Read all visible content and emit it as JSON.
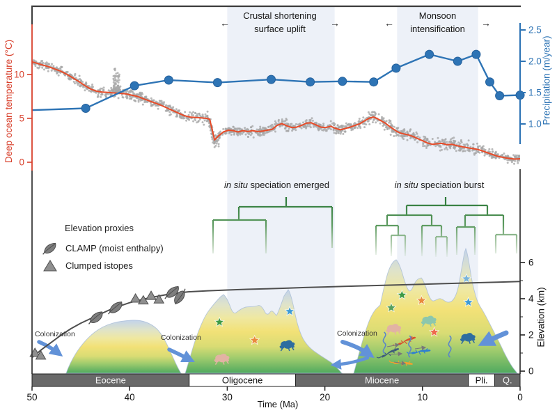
{
  "annotations": {
    "uplift": {
      "line1": "Crustal shortening",
      "line2": "surface uplift",
      "arrow_left": "←",
      "arrow_right": "→"
    },
    "monsoon": {
      "line1": "Monsoon",
      "line2": "intensification",
      "arrow_left": "←",
      "arrow_right": "→"
    },
    "speciation1": {
      "italic": "in situ",
      "rest": " speciation emerged"
    },
    "speciation2": {
      "italic": "in situ",
      "rest": " speciation burst"
    },
    "colonization": {
      "label": "Colonization"
    }
  },
  "legend": {
    "title": "Elevation proxies",
    "items": [
      {
        "icon": "leaf-icon",
        "label": "CLAMP (moist enthalpy)"
      },
      {
        "icon": "triangle-icon",
        "label": "Clumped istopes"
      }
    ]
  },
  "chart_data": {
    "type": "line",
    "x_axis": {
      "label": "Time (Ma)",
      "range": [
        50,
        0
      ],
      "ticks": [
        50,
        40,
        30,
        20,
        10,
        0
      ]
    },
    "shaded_bands": [
      {
        "label": "Crustal shortening surface uplift",
        "from_ma": 30,
        "to_ma": 19,
        "color": "#edf1f8"
      },
      {
        "label": "Monsoon intensification",
        "from_ma": 12.6,
        "to_ma": 4.3,
        "color": "#edf1f8"
      }
    ],
    "temperature": {
      "axis_label": "Deep ocean temperature (°C)",
      "color": "#e84b28",
      "axis_color": "#d8402c",
      "ticks": [
        10,
        5,
        0
      ],
      "smoothed_series": [
        [
          50,
          11.45
        ],
        [
          49.4,
          11.25
        ],
        [
          48.8,
          11.05
        ],
        [
          48.2,
          10.85
        ],
        [
          47.6,
          10.6
        ],
        [
          47,
          10.35
        ],
        [
          46.4,
          10.0
        ],
        [
          45.8,
          9.6
        ],
        [
          45.2,
          9.2
        ],
        [
          44.6,
          8.75
        ],
        [
          44,
          8.35
        ],
        [
          43.4,
          8.1
        ],
        [
          42.8,
          8.0
        ],
        [
          42.2,
          7.95
        ],
        [
          41.6,
          7.9
        ],
        [
          41,
          7.85
        ],
        [
          40.4,
          7.8
        ],
        [
          39.8,
          7.65
        ],
        [
          39.2,
          7.5
        ],
        [
          38.6,
          7.25
        ],
        [
          38,
          7.0
        ],
        [
          37.4,
          6.75
        ],
        [
          36.8,
          6.5
        ],
        [
          36.2,
          6.2
        ],
        [
          35.6,
          5.9
        ],
        [
          35,
          5.6
        ],
        [
          34.4,
          5.3
        ],
        [
          33.8,
          5.15
        ],
        [
          33.2,
          5.1
        ],
        [
          32.6,
          5.05
        ],
        [
          32.1,
          5.0
        ],
        [
          31.8,
          4.9
        ],
        [
          31.3,
          2.55
        ],
        [
          30.9,
          3.0
        ],
        [
          30.4,
          3.45
        ],
        [
          29.9,
          3.65
        ],
        [
          29.4,
          3.6
        ],
        [
          28.9,
          3.45
        ],
        [
          28.4,
          3.6
        ],
        [
          27.9,
          3.5
        ],
        [
          27.4,
          3.6
        ],
        [
          26.9,
          3.5
        ],
        [
          26.4,
          3.55
        ],
        [
          25.9,
          3.65
        ],
        [
          25.4,
          3.75
        ],
        [
          24.9,
          4.2
        ],
        [
          24.4,
          4.4
        ],
        [
          23.9,
          4.15
        ],
        [
          23.4,
          3.95
        ],
        [
          22.9,
          4.0
        ],
        [
          22.4,
          4.2
        ],
        [
          21.9,
          4.45
        ],
        [
          21.4,
          4.5
        ],
        [
          20.9,
          4.25
        ],
        [
          20.4,
          4.0
        ],
        [
          19.9,
          3.95
        ],
        [
          19.4,
          4.1
        ],
        [
          18.9,
          3.85
        ],
        [
          18.4,
          3.7
        ],
        [
          17.9,
          3.85
        ],
        [
          17.4,
          4.0
        ],
        [
          16.9,
          4.2
        ],
        [
          16.4,
          4.4
        ],
        [
          15.9,
          4.75
        ],
        [
          15.4,
          5.05
        ],
        [
          15,
          5.15
        ],
        [
          14.6,
          4.95
        ],
        [
          14.2,
          4.7
        ],
        [
          13.8,
          4.45
        ],
        [
          13.4,
          4.1
        ],
        [
          13,
          3.8
        ],
        [
          12.6,
          3.5
        ],
        [
          12.2,
          3.3
        ],
        [
          11.8,
          3.2
        ],
        [
          11.4,
          3.1
        ],
        [
          11,
          2.95
        ],
        [
          10.5,
          2.7
        ],
        [
          10,
          2.45
        ],
        [
          9.5,
          2.2
        ],
        [
          9,
          2.05
        ],
        [
          8.5,
          2.1
        ],
        [
          8,
          2.15
        ],
        [
          7.5,
          2.0
        ],
        [
          7,
          2.05
        ],
        [
          6.5,
          1.9
        ],
        [
          6,
          1.78
        ],
        [
          5.5,
          1.68
        ],
        [
          5,
          1.58
        ],
        [
          4.5,
          1.5
        ],
        [
          4,
          1.35
        ],
        [
          3.5,
          1.15
        ],
        [
          3,
          0.95
        ],
        [
          2.5,
          0.75
        ],
        [
          2,
          0.6
        ],
        [
          1.5,
          0.5
        ],
        [
          1,
          0.42
        ],
        [
          0.5,
          0.36
        ],
        [
          0,
          0.4
        ]
      ],
      "scatter": {
        "color": "#a7a7a7",
        "noise_amplitude_c": 0.6,
        "spike_at_ma": 41.3,
        "spike_peak_c": 10.4,
        "eot_low_cluster_ma": 31.3
      }
    },
    "precipitation": {
      "axis_label": "Precipitation (m/year)",
      "color": "#2e74b5",
      "ticks": [
        2.5,
        2.0,
        1.5,
        1.0
      ],
      "series": [
        [
          50,
          1.22
        ],
        [
          44.5,
          1.25
        ],
        [
          39.5,
          1.61
        ],
        [
          36,
          1.7
        ],
        [
          31,
          1.66
        ],
        [
          25.5,
          1.71
        ],
        [
          21.5,
          1.67
        ],
        [
          18.2,
          1.68
        ],
        [
          15,
          1.67
        ],
        [
          12.7,
          1.89
        ],
        [
          9.3,
          2.11
        ],
        [
          6.4,
          2.0
        ],
        [
          4.5,
          2.11
        ],
        [
          3.1,
          1.67
        ],
        [
          2.1,
          1.45
        ],
        [
          0,
          1.46
        ]
      ]
    },
    "elevation": {
      "axis_label": "Elevation (km)",
      "ticks": [
        6,
        4,
        2,
        0
      ],
      "proxy_curve": [
        [
          50,
          0.75
        ],
        [
          49,
          1.2
        ],
        [
          48,
          1.6
        ],
        [
          47,
          2.0
        ],
        [
          46,
          2.35
        ],
        [
          45,
          2.65
        ],
        [
          44,
          2.9
        ],
        [
          43,
          3.15
        ],
        [
          42,
          3.4
        ],
        [
          41,
          3.6
        ],
        [
          40,
          3.78
        ],
        [
          39,
          3.92
        ],
        [
          38,
          4.05
        ],
        [
          37,
          4.15
        ],
        [
          36,
          4.25
        ],
        [
          35,
          4.32
        ],
        [
          34,
          4.38
        ],
        [
          32,
          4.44
        ],
        [
          30,
          4.48
        ],
        [
          28,
          4.52
        ],
        [
          26,
          4.55
        ],
        [
          24,
          4.58
        ],
        [
          22,
          4.62
        ],
        [
          20,
          4.65
        ],
        [
          18,
          4.68
        ],
        [
          16,
          4.71
        ],
        [
          14,
          4.74
        ],
        [
          12,
          4.77
        ],
        [
          10,
          4.8
        ],
        [
          8,
          4.83
        ],
        [
          6,
          4.86
        ],
        [
          4,
          4.89
        ],
        [
          2,
          4.92
        ],
        [
          0,
          4.95
        ]
      ],
      "clumped_isotope_points": [
        [
          49.7,
          1.0
        ],
        [
          49.1,
          0.85
        ],
        [
          39.4,
          4.0
        ],
        [
          38.6,
          3.9
        ],
        [
          37.8,
          4.15
        ],
        [
          37.0,
          3.95
        ]
      ],
      "clamp_points": [
        [
          43.4,
          2.95
        ],
        [
          41.4,
          3.5
        ],
        [
          35.6,
          4.35
        ],
        [
          34.9,
          4.1
        ]
      ],
      "mountain_groups": [
        {
          "interval": "Eocene",
          "from_ma": 46.5,
          "to_ma": 34.8,
          "peak_km": 2.9
        },
        {
          "interval": "Oligocene",
          "from_ma": 34.3,
          "to_ma": 18.2,
          "peak_km": 4.6
        },
        {
          "interval": "Miocene-present",
          "from_ma": 17.0,
          "to_ma": 0.3,
          "peak_km": 6.8
        }
      ]
    },
    "phylogeny": [
      {
        "label_italic": "in situ",
        "label_rest": " speciation emerged",
        "root_ma": 24.0
      },
      {
        "label_italic": "in situ",
        "label_rest": " speciation burst",
        "root_ma": 7.6
      }
    ],
    "colonization_events_ma": [
      49,
      36.5,
      16.5,
      2
    ],
    "fauna_flora": [
      {
        "type": "star",
        "color": "#3f9b45",
        "ma": 30.8,
        "km": 2.7
      },
      {
        "type": "star",
        "color": "#e98a3c",
        "ma": 27.2,
        "km": 1.7
      },
      {
        "type": "star",
        "color": "#3e9bd5",
        "ma": 23.6,
        "km": 3.3
      },
      {
        "type": "frog",
        "color": "#e2b3a3",
        "ma": 30.5,
        "km": 0.7
      },
      {
        "type": "frog",
        "color": "#2e6da0",
        "ma": 23.8,
        "km": 1.45
      },
      {
        "type": "star",
        "color": "#3f9b45",
        "ma": 12.1,
        "km": 4.2
      },
      {
        "type": "star",
        "color": "#55a05c",
        "ma": 13.2,
        "km": 3.5
      },
      {
        "type": "star",
        "color": "#e98a3c",
        "ma": 10.1,
        "km": 3.9
      },
      {
        "type": "star",
        "color": "#7ab4d8",
        "ma": 5.5,
        "km": 5.1
      },
      {
        "type": "star",
        "color": "#3e9bd5",
        "ma": 5.3,
        "km": 3.8
      },
      {
        "type": "star",
        "color": "#ee6a4d",
        "ma": 8.8,
        "km": 2.15
      },
      {
        "type": "frog",
        "color": "#e2b3a3",
        "ma": 12.9,
        "km": 2.35
      },
      {
        "type": "frog",
        "color": "#8cc7ad",
        "ma": 9.3,
        "km": 2.8
      },
      {
        "type": "frog",
        "color": "#2e6da0",
        "ma": 5.3,
        "km": 1.85
      },
      {
        "type": "lizard",
        "color": "#3f5d7a",
        "ma": 13.3,
        "km": 1.1
      },
      {
        "type": "lizard",
        "color": "#d8502e",
        "ma": 11.6,
        "km": 1.75
      },
      {
        "type": "lizard",
        "color": "#2f7fd0",
        "ma": 10.1,
        "km": 1.15
      },
      {
        "type": "lizard",
        "color": "#f0a12f",
        "ma": 11.9,
        "km": 0.5
      },
      {
        "type": "snake",
        "color": "#5b86c8",
        "ma": 13.9,
        "km": 1.6
      },
      {
        "type": "snake",
        "color": "#5b86c8",
        "ma": 11.3,
        "km": 1.4
      },
      {
        "type": "snake",
        "color": "#5b86c8",
        "ma": 7.2,
        "km": 1.4
      }
    ],
    "timescale": [
      {
        "name": "Eocene",
        "from_ma": 50,
        "to_ma": 33.9,
        "style": "dark"
      },
      {
        "name": "Oligocene",
        "from_ma": 33.9,
        "to_ma": 23,
        "style": "light"
      },
      {
        "name": "Miocene",
        "from_ma": 23,
        "to_ma": 5.3,
        "style": "dark"
      },
      {
        "name": "Pli.",
        "from_ma": 5.3,
        "to_ma": 2.6,
        "style": "light"
      },
      {
        "name": "Q.",
        "from_ma": 2.6,
        "to_ma": 0,
        "style": "dark"
      }
    ],
    "colors": {
      "timescale_dark": "#696969",
      "tree_green": "#2e7a3a",
      "mountain_top": "#c2d3eb",
      "mountain_mid": "#f2e177",
      "mountain_base": "#4fa95f",
      "colonization_arrow": "#6292d8"
    }
  }
}
